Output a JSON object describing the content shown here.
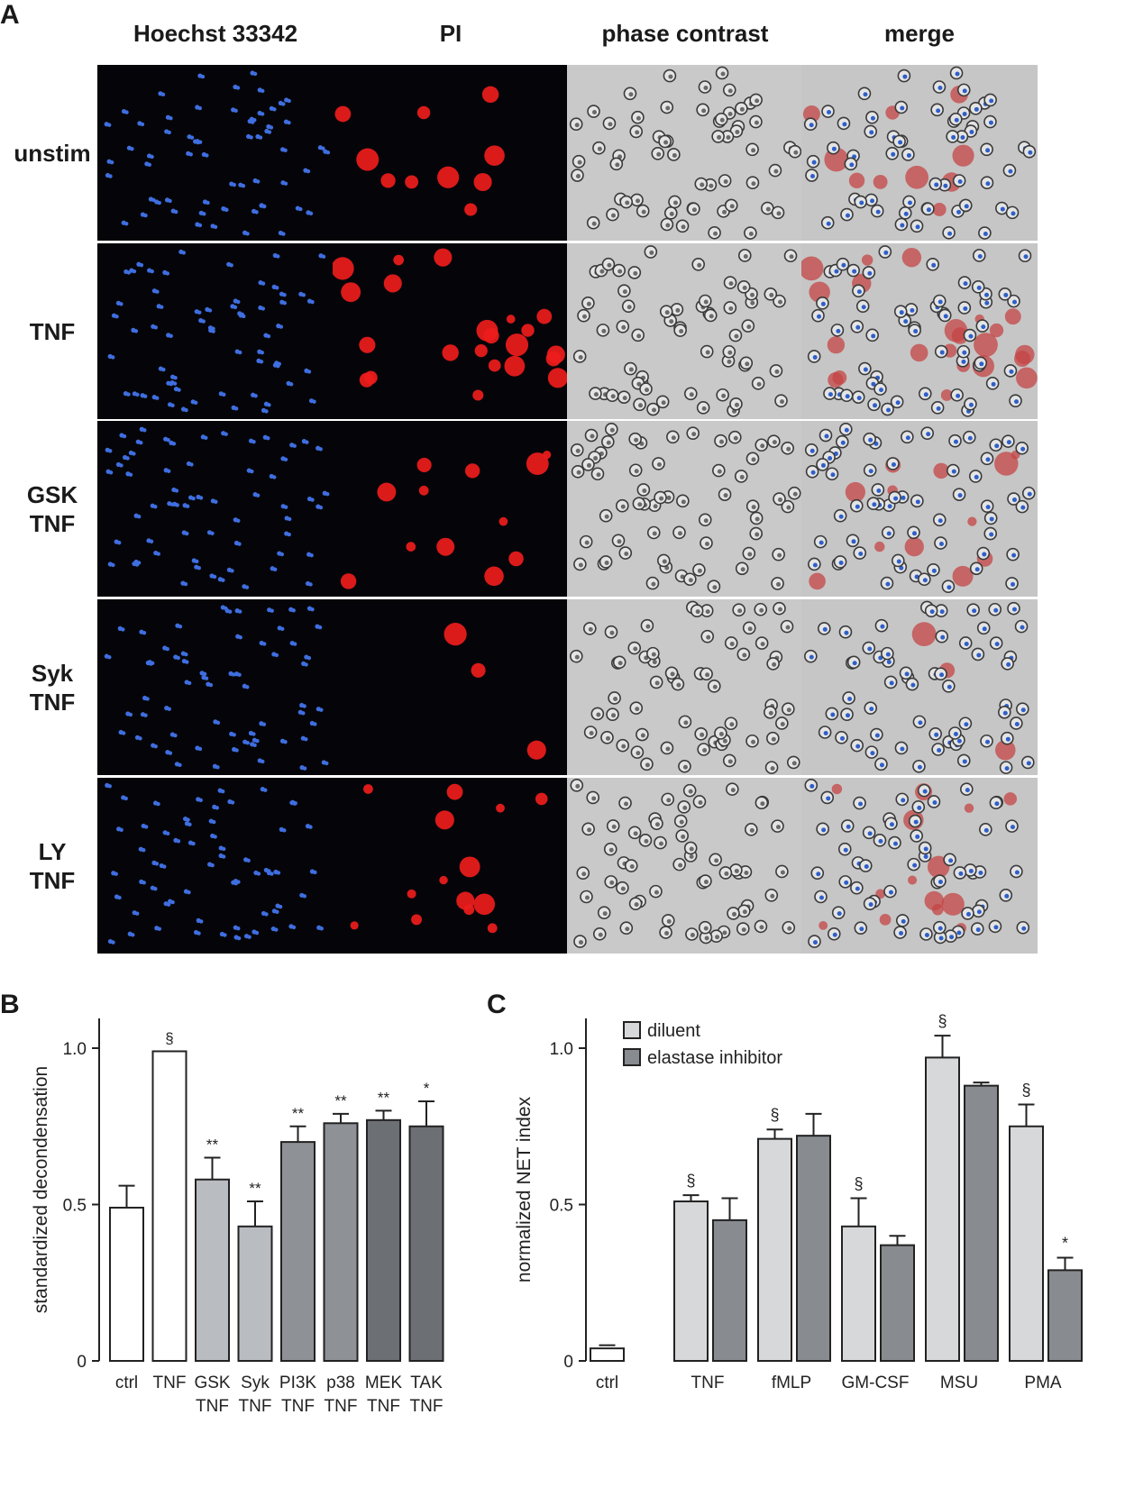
{
  "panel_a": {
    "letter": "A",
    "column_headers": [
      "Hoechst 33342",
      "PI",
      "phase contrast",
      "merge"
    ],
    "rows": [
      {
        "label": [
          "unstim"
        ]
      },
      {
        "label": [
          "TNF"
        ]
      },
      {
        "label": [
          "GSK",
          "TNF"
        ]
      },
      {
        "label": [
          "Syk",
          "TNF"
        ]
      },
      {
        "label": [
          "LY",
          "TNF"
        ]
      }
    ],
    "channel_colors": {
      "hoechst": "#3f6ee0",
      "pi": "#ee1c1c",
      "phase_bg": "#c9c9c9",
      "merge_bg": "#c6c6c6",
      "dark_bg": "#050509"
    }
  },
  "chart_data": [
    {
      "panel": "B",
      "type": "bar",
      "title": "",
      "ylabel": "standardized decondensation",
      "xlabel": "",
      "ylim": [
        0,
        1.0
      ],
      "yticks": [
        0,
        0.5,
        1.0
      ],
      "ytick_labels": [
        "0",
        "0.5",
        "1.0"
      ],
      "categories": [
        [
          "ctrl"
        ],
        [
          "TNF"
        ],
        [
          "GSK",
          "TNF"
        ],
        [
          "Syk",
          "TNF"
        ],
        [
          "PI3K",
          "TNF"
        ],
        [
          "p38",
          "TNF"
        ],
        [
          "MEK",
          "TNF"
        ],
        [
          "TAK",
          "TNF"
        ]
      ],
      "values": [
        0.49,
        0.99,
        0.58,
        0.43,
        0.7,
        0.76,
        0.77,
        0.75
      ],
      "errors": [
        0.07,
        0.0,
        0.07,
        0.08,
        0.05,
        0.03,
        0.03,
        0.08
      ],
      "significance": [
        "",
        "§",
        "**",
        "**",
        "**",
        "**",
        "**",
        "*"
      ],
      "bar_colors": [
        "#ffffff",
        "#ffffff",
        "#b9bcc0",
        "#b9bcc0",
        "#8e9196",
        "#8e9196",
        "#6c6f74",
        "#6c6f74"
      ],
      "grid": false
    },
    {
      "panel": "C",
      "type": "bar",
      "title": "",
      "ylabel": "normalized NET index",
      "xlabel": "",
      "ylim": [
        0,
        1.0
      ],
      "yticks": [
        0,
        0.5,
        1.0
      ],
      "ytick_labels": [
        "0",
        "0.5",
        "1.0"
      ],
      "categories": [
        "ctrl",
        "TNF",
        "fMLP",
        "GM-CSF",
        "MSU",
        "PMA"
      ],
      "ctrl_bar": {
        "value": 0.04,
        "error": 0.01,
        "color": "#ffffff"
      },
      "series": [
        {
          "name": "diluent",
          "color": "#d6d8da",
          "values": [
            null,
            0.51,
            0.71,
            0.43,
            0.97,
            0.75
          ],
          "errors": [
            null,
            0.02,
            0.03,
            0.09,
            0.07,
            0.07
          ],
          "significance": [
            "",
            "§",
            "§",
            "§",
            "§",
            "§"
          ]
        },
        {
          "name": "elastase inhibitor",
          "color": "#888b90",
          "values": [
            null,
            0.45,
            0.72,
            0.37,
            0.88,
            0.29
          ],
          "errors": [
            null,
            0.07,
            0.07,
            0.03,
            0.01,
            0.04
          ],
          "significance": [
            "",
            "",
            "",
            "",
            "",
            "*"
          ]
        }
      ],
      "legend_position": "top",
      "grid": false
    }
  ]
}
